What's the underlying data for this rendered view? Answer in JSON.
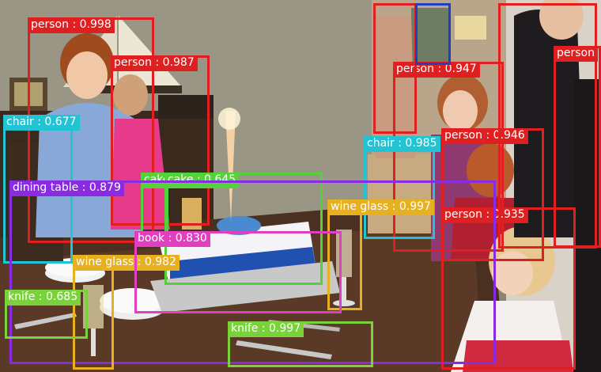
{
  "detections": [
    {
      "label": "person : 0.998",
      "color": "#e02020"
    },
    {
      "label": "person : 0.987",
      "color": "#e02020"
    },
    {
      "label": "person : 0.947",
      "color": "#e02020"
    },
    {
      "label": "person : 0.946",
      "color": "#e02020"
    },
    {
      "label": "person : 0.935",
      "color": "#e02020"
    },
    {
      "label": "person",
      "color": "#e02020"
    },
    {
      "label": "",
      "color": "#e02020"
    },
    {
      "label": "",
      "color": "#e02020"
    },
    {
      "label": "",
      "color": "#2040c0"
    },
    {
      "label": "chair : 0.677",
      "color": "#22c4d4"
    },
    {
      "label": "chair : 0.985",
      "color": "#22c4d4"
    },
    {
      "label": "cake",
      "color": "#55d23a"
    },
    {
      "label": "cake : 0.645",
      "color": "#55d23a"
    },
    {
      "label": "dining table : 0.879",
      "color": "#8a2be2"
    },
    {
      "label": "wine glass : 0.997",
      "color": "#e6b020"
    },
    {
      "label": "wine glass : 0.982",
      "color": "#e6b020"
    },
    {
      "label": "book : 0.830",
      "color": "#e040c0"
    },
    {
      "label": "knife : 0.685",
      "color": "#7ad23a"
    },
    {
      "label": "knife : 0.997",
      "color": "#7ad23a"
    }
  ]
}
